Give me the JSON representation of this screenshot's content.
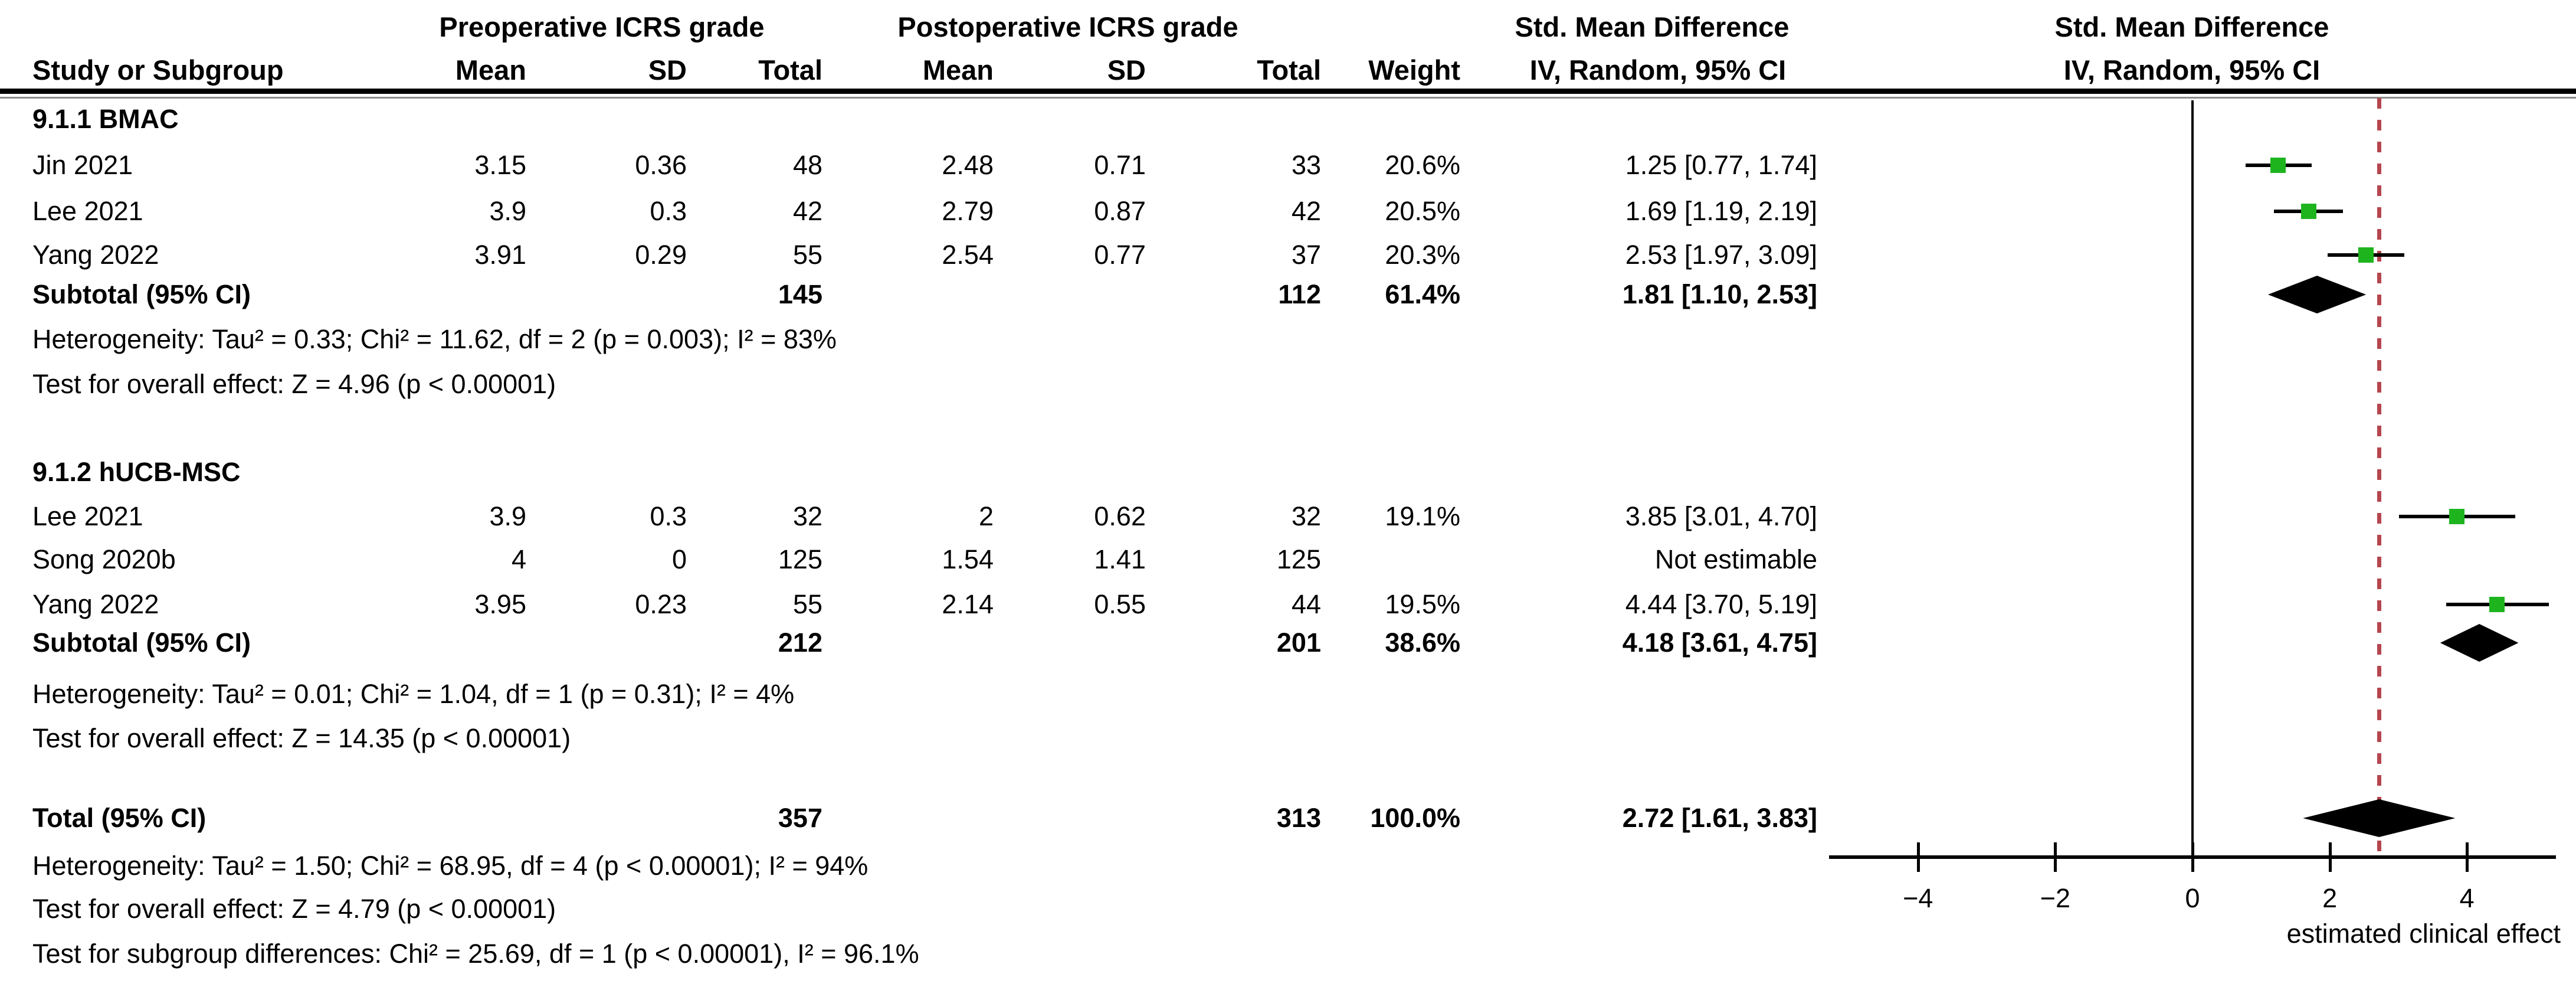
{
  "table": {
    "group_headers": {
      "pre": "Preoperative ICRS grade",
      "post": "Postoperative ICRS grade",
      "smd_text": "Std. Mean Difference",
      "smd_plot": "Std. Mean Difference"
    },
    "col_headers": {
      "study": "Study or Subgroup",
      "mean1": "Mean",
      "sd1": "SD",
      "total1": "Total",
      "mean2": "Mean",
      "sd2": "SD",
      "total2": "Total",
      "weight": "Weight",
      "iv_text": "IV, Random, 95% CI",
      "iv_plot": "IV, Random, 95% CI"
    },
    "sections": [
      {
        "label": "9.1.1 BMAC",
        "studies": [
          {
            "study": "Jin 2021",
            "mean1": "3.15",
            "sd1": "0.36",
            "total1": "48",
            "mean2": "2.48",
            "sd2": "0.71",
            "total2": "33",
            "weight": "20.6%",
            "ci": "1.25 [0.77, 1.74]"
          },
          {
            "study": "Lee 2021",
            "mean1": "3.9",
            "sd1": "0.3",
            "total1": "42",
            "mean2": "2.79",
            "sd2": "0.87",
            "total2": "42",
            "weight": "20.5%",
            "ci": "1.69 [1.19, 2.19]"
          },
          {
            "study": "Yang 2022",
            "mean1": "3.91",
            "sd1": "0.29",
            "total1": "55",
            "mean2": "2.54",
            "sd2": "0.77",
            "total2": "37",
            "weight": "20.3%",
            "ci": "2.53 [1.97, 3.09]"
          }
        ],
        "subtotal": {
          "label": "Subtotal (95% CI)",
          "total1": "145",
          "total2": "112",
          "weight": "61.4%",
          "ci": "1.81 [1.10, 2.53]"
        },
        "heterogeneity": "Heterogeneity: Tau² = 0.33; Chi² = 11.62, df = 2 (p = 0.003); I² = 83%",
        "overall_effect": "Test for overall effect: Z = 4.96 (p < 0.00001)"
      },
      {
        "label": "9.1.2 hUCB-MSC",
        "studies": [
          {
            "study": "Lee 2021",
            "mean1": "3.9",
            "sd1": "0.3",
            "total1": "32",
            "mean2": "2",
            "sd2": "0.62",
            "total2": "32",
            "weight": "19.1%",
            "ci": "3.85 [3.01, 4.70]"
          },
          {
            "study": "Song 2020b",
            "mean1": "4",
            "sd1": "0",
            "total1": "125",
            "mean2": "1.54",
            "sd2": "1.41",
            "total2": "125",
            "weight": "",
            "ci": "Not estimable"
          },
          {
            "study": "Yang 2022",
            "mean1": "3.95",
            "sd1": "0.23",
            "total1": "55",
            "mean2": "2.14",
            "sd2": "0.55",
            "total2": "44",
            "weight": "19.5%",
            "ci": "4.44 [3.70, 5.19]"
          }
        ],
        "subtotal": {
          "label": "Subtotal (95% CI)",
          "total1": "212",
          "total2": "201",
          "weight": "38.6%",
          "ci": "4.18 [3.61, 4.75]"
        },
        "heterogeneity": "Heterogeneity: Tau² = 0.01; Chi² = 1.04, df = 1 (p = 0.31); I² = 4%",
        "overall_effect": "Test for overall effect: Z = 14.35 (p < 0.00001)"
      }
    ],
    "total": {
      "label": "Total (95% CI)",
      "total1": "357",
      "total2": "313",
      "weight": "100.0%",
      "ci": "2.72 [1.61, 3.83]"
    },
    "total_heterogeneity": "Heterogeneity: Tau² = 1.50; Chi² = 68.95, df = 4 (p < 0.00001); I² = 94%",
    "total_overall_effect": "Test for overall effect: Z = 4.79 (p < 0.00001)",
    "subgroup_differences": "Test for subgroup differences: Chi² = 25.69, df = 1 (p < 0.00001), I² = 96.1%"
  },
  "chart_data": {
    "type": "forest",
    "xlabel": "estimated clinical effect",
    "axis_ticks": [
      -4,
      -2,
      0,
      2,
      4
    ],
    "axis_range": [
      -5.3,
      5.3
    ],
    "zero_line": 0,
    "overall_line": 2.72,
    "marker_color": "#1eb41e",
    "overall_line_color": "#b5464e",
    "groups": [
      {
        "name": "9.1.1 BMAC",
        "studies": [
          {
            "study": "Jin 2021",
            "est": 1.25,
            "lo": 0.77,
            "hi": 1.74
          },
          {
            "study": "Lee 2021",
            "est": 1.69,
            "lo": 1.19,
            "hi": 2.19
          },
          {
            "study": "Yang 2022",
            "est": 2.53,
            "lo": 1.97,
            "hi": 3.09
          }
        ],
        "subtotal": {
          "est": 1.81,
          "lo": 1.1,
          "hi": 2.53
        }
      },
      {
        "name": "9.1.2 hUCB-MSC",
        "studies": [
          {
            "study": "Lee 2021",
            "est": 3.85,
            "lo": 3.01,
            "hi": 4.7
          },
          {
            "study": "Song 2020b",
            "est": null,
            "lo": null,
            "hi": null
          },
          {
            "study": "Yang 2022",
            "est": 4.44,
            "lo": 3.7,
            "hi": 5.19
          }
        ],
        "subtotal": {
          "est": 4.18,
          "lo": 3.61,
          "hi": 4.75
        }
      }
    ],
    "total": {
      "est": 2.72,
      "lo": 1.61,
      "hi": 3.83
    }
  }
}
